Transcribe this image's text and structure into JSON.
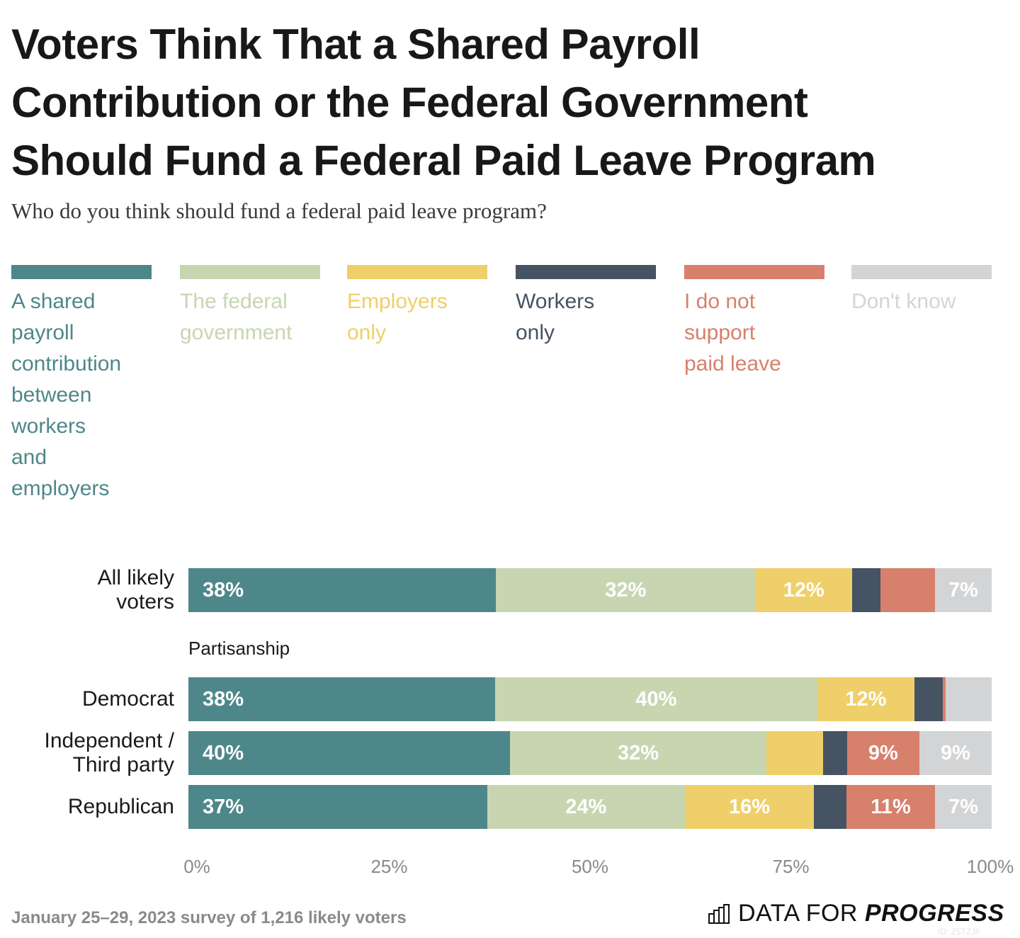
{
  "header": {
    "title_lines": [
      "Voters Think That a Shared Payroll",
      "Contribution or the Federal Government",
      "Should Fund a Federal Paid Leave Program"
    ],
    "subtitle": "Who do you think should fund a federal paid leave program?"
  },
  "legend": [
    {
      "label": "A shared payroll contribution between workers and employers",
      "color": "#4e878a",
      "lines": [
        "A shared",
        "payroll",
        "contribution",
        "between",
        "workers",
        "and",
        "employers"
      ]
    },
    {
      "label": "The federal government",
      "color": "#c7d6b1",
      "lines": [
        "The federal",
        "government"
      ]
    },
    {
      "label": "Employers only",
      "color": "#efcf69",
      "lines": [
        "Employers",
        "only"
      ]
    },
    {
      "label": "Workers only",
      "color": "#465363",
      "lines": [
        "Workers",
        "only"
      ]
    },
    {
      "label": "I do not support paid leave",
      "color": "#d7806b",
      "lines": [
        "I do not",
        "support",
        "paid leave"
      ]
    },
    {
      "label": "Don't know",
      "color": "#d3d4d6",
      "lines": [
        "Don't know"
      ]
    }
  ],
  "rows": [
    {
      "label_lines": [
        "All likely",
        "voters"
      ],
      "values": [
        38,
        32,
        12,
        3.5,
        6.7,
        7
      ],
      "labels": [
        "38%",
        "32%",
        "12%",
        "",
        "",
        "7%"
      ]
    },
    {
      "label_lines": [
        "Democrat"
      ],
      "values": [
        38,
        40,
        12,
        3.5,
        0.4,
        5.7
      ],
      "labels": [
        "38%",
        "40%",
        "12%",
        "",
        "",
        ""
      ]
    },
    {
      "label_lines": [
        "Independent /",
        "Third party"
      ],
      "values": [
        40,
        32,
        7,
        3,
        9,
        9
      ],
      "labels": [
        "40%",
        "32%",
        "",
        "",
        "9%",
        "9%"
      ]
    },
    {
      "label_lines": [
        "Republican"
      ],
      "values": [
        37,
        24.5,
        16,
        4,
        11,
        7
      ],
      "labels": [
        "37%",
        "24%",
        "16%",
        "",
        "11%",
        "7%"
      ]
    }
  ],
  "group_label": "Partisanship",
  "axis": {
    "ticks": [
      "0%",
      "25%",
      "50%",
      "75%",
      "100%"
    ]
  },
  "footer": {
    "note": "January 25–29, 2023 survey of 1,216 likely voters",
    "brand_regular": "DATA FOR ",
    "brand_bold": "PROGRESS",
    "id": "ID: Z5TZJF"
  },
  "chart_data": {
    "type": "bar",
    "orientation": "horizontal",
    "stacked": true,
    "title": "Voters Think That a Shared Payroll Contribution or the Federal Government Should Fund a Federal Paid Leave Program",
    "subtitle": "Who do you think should fund a federal paid leave program?",
    "categories": [
      "All likely voters",
      "Democrat",
      "Independent / Third party",
      "Republican"
    ],
    "group_labels": {
      "Partisanship": [
        "Democrat",
        "Independent / Third party",
        "Republican"
      ]
    },
    "series": [
      {
        "name": "A shared payroll contribution between workers and employers",
        "color": "#4e878a",
        "values": [
          38,
          38,
          40,
          37
        ]
      },
      {
        "name": "The federal government",
        "color": "#c7d6b1",
        "values": [
          32,
          40,
          32,
          24
        ]
      },
      {
        "name": "Employers only",
        "color": "#efcf69",
        "values": [
          12,
          12,
          7,
          16
        ]
      },
      {
        "name": "Workers only",
        "color": "#465363",
        "values": [
          4,
          4,
          3,
          4
        ]
      },
      {
        "name": "I do not support paid leave",
        "color": "#d7806b",
        "values": [
          7,
          0,
          9,
          11
        ]
      },
      {
        "name": "Don't know",
        "color": "#d3d4d6",
        "values": [
          7,
          6,
          9,
          7
        ]
      }
    ],
    "xlabel": "",
    "ylabel": "",
    "xlim": [
      0,
      100
    ],
    "xticks": [
      "0%",
      "25%",
      "50%",
      "75%",
      "100%"
    ],
    "legend_position": "top",
    "grid": false,
    "source_note": "January 25–29, 2023 survey of 1,216 likely voters"
  }
}
